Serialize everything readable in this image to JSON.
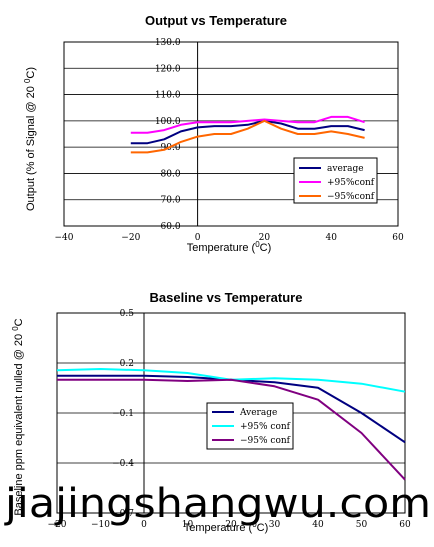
{
  "chart_data": [
    {
      "type": "line",
      "title": "Output vs Temperature",
      "xlabel": "Temperature (°C)",
      "ylabel": "Output (% of Signal @ 20 °C)",
      "xlim": [
        -40,
        60
      ],
      "ylim": [
        60,
        130
      ],
      "x_ticks": [
        "−40",
        "−20",
        "0",
        "20",
        "40",
        "60"
      ],
      "y_ticks": [
        "60.0",
        "70.0",
        "80.0",
        "90.0",
        "100.0",
        "110.0",
        "120.0",
        "130.0"
      ],
      "grid": "horizontal",
      "legend": "lower-right",
      "series": [
        {
          "name": "average",
          "color": "#000080",
          "points": [
            [
              -20,
              91.5
            ],
            [
              -15,
              91.5
            ],
            [
              -10,
              93
            ],
            [
              -5,
              96
            ],
            [
              0,
              97.5
            ],
            [
              5,
              98
            ],
            [
              10,
              98
            ],
            [
              15,
              98.5
            ],
            [
              20,
              100
            ],
            [
              25,
              99
            ],
            [
              30,
              97
            ],
            [
              35,
              97
            ],
            [
              40,
              98
            ],
            [
              45,
              98
            ],
            [
              50,
              96.5
            ]
          ]
        },
        {
          "name": "+95%conf",
          "color": "#ff00ff",
          "points": [
            [
              -20,
              95.5
            ],
            [
              -15,
              95.5
            ],
            [
              -10,
              96.5
            ],
            [
              -5,
              98.5
            ],
            [
              0,
              99.5
            ],
            [
              5,
              99.5
            ],
            [
              10,
              99.5
            ],
            [
              15,
              100
            ],
            [
              20,
              100.5
            ],
            [
              25,
              100
            ],
            [
              30,
              99.5
            ],
            [
              35,
              99.5
            ],
            [
              40,
              101.5
            ],
            [
              45,
              101.5
            ],
            [
              50,
              99.5
            ]
          ]
        },
        {
          "name": "−95%conf",
          "color": "#ff6600",
          "points": [
            [
              -20,
              88
            ],
            [
              -15,
              88
            ],
            [
              -10,
              89
            ],
            [
              -5,
              92
            ],
            [
              0,
              94
            ],
            [
              5,
              95
            ],
            [
              10,
              95
            ],
            [
              15,
              97
            ],
            [
              20,
              100
            ],
            [
              25,
              97
            ],
            [
              30,
              95
            ],
            [
              35,
              95
            ],
            [
              40,
              96
            ],
            [
              45,
              95
            ],
            [
              50,
              93.5
            ]
          ]
        }
      ]
    },
    {
      "type": "line",
      "title": "Baseline vs Temperature",
      "xlabel": "Temperature (°C)",
      "ylabel": "Baseline ppm equivalent nulled @ 20 °C",
      "xlim": [
        -20,
        60
      ],
      "ylim": [
        -1,
        0.5
      ],
      "x_ticks": [
        "−20",
        "−10",
        "0",
        "10",
        "20",
        "30",
        "40",
        "50",
        "60"
      ],
      "y_ticks": [
        "−0.7",
        "−0.4",
        "−0.1",
        "0.2",
        "0.5"
      ],
      "grid": "horizontal",
      "legend": "center-right",
      "series": [
        {
          "name": "Average",
          "color": "#000080",
          "points": [
            [
              -20,
              0.03
            ],
            [
              -10,
              0.03
            ],
            [
              0,
              0.03
            ],
            [
              10,
              0.02
            ],
            [
              20,
              0.0
            ],
            [
              30,
              -0.02
            ],
            [
              40,
              -0.06
            ],
            [
              50,
              -0.25
            ],
            [
              60,
              -0.47
            ]
          ]
        },
        {
          "name": "+95% conf",
          "color": "#00ffff",
          "points": [
            [
              -20,
              0.07
            ],
            [
              -10,
              0.08
            ],
            [
              0,
              0.07
            ],
            [
              10,
              0.05
            ],
            [
              20,
              0.0
            ],
            [
              30,
              0.01
            ],
            [
              40,
              0.0
            ],
            [
              50,
              -0.03
            ],
            [
              60,
              -0.09
            ]
          ]
        },
        {
          "name": "−95% conf",
          "color": "#800080",
          "points": [
            [
              -20,
              0.0
            ],
            [
              -10,
              0.0
            ],
            [
              0,
              0.0
            ],
            [
              10,
              -0.01
            ],
            [
              20,
              0.0
            ],
            [
              30,
              -0.05
            ],
            [
              40,
              -0.15
            ],
            [
              50,
              -0.4
            ],
            [
              60,
              -0.75
            ]
          ]
        }
      ]
    }
  ],
  "watermark": "jiajingshangwu.com"
}
